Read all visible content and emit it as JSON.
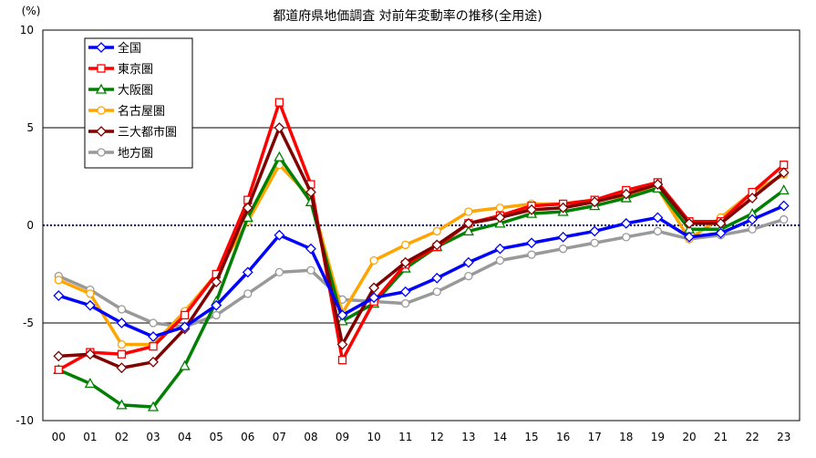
{
  "chart_data": {
    "type": "line",
    "title": "都道府県地価調査 対前年変動率の推移(全用途)",
    "ylabel": "(%)",
    "xlabel": "",
    "ylim": [
      -10,
      10
    ],
    "yticks": [
      10,
      5,
      0,
      -5,
      -10
    ],
    "grid": true,
    "legend_position": "top-left",
    "categories": [
      "00",
      "01",
      "02",
      "03",
      "04",
      "05",
      "06",
      "07",
      "08",
      "09",
      "10",
      "11",
      "12",
      "13",
      "14",
      "15",
      "16",
      "17",
      "18",
      "19",
      "20",
      "21",
      "22",
      "23"
    ],
    "series": [
      {
        "name": "全国",
        "color": "#0000ff",
        "marker": "diamond",
        "values": [
          -3.6,
          -4.1,
          -5.0,
          -5.7,
          -5.2,
          -4.1,
          -2.4,
          -0.5,
          -1.2,
          -4.6,
          -3.7,
          -3.4,
          -2.7,
          -1.9,
          -1.2,
          -0.9,
          -0.6,
          -0.3,
          0.1,
          0.4,
          -0.6,
          -0.4,
          0.3,
          1.0
        ]
      },
      {
        "name": "東京圏",
        "color": "#ff0000",
        "marker": "square",
        "values": [
          -7.4,
          -6.5,
          -6.6,
          -6.2,
          -4.6,
          -2.5,
          1.3,
          6.3,
          2.1,
          -6.9,
          -3.9,
          -2.0,
          -1.1,
          0.1,
          0.5,
          1.0,
          1.1,
          1.3,
          1.8,
          2.2,
          0.2,
          0.2,
          1.7,
          3.1
        ]
      },
      {
        "name": "大阪圏",
        "color": "#008000",
        "marker": "triangle",
        "values": [
          -7.4,
          -8.1,
          -9.2,
          -9.3,
          -7.2,
          -3.9,
          0.4,
          3.5,
          1.2,
          -4.9,
          -4.0,
          -2.2,
          -1.1,
          -0.3,
          0.1,
          0.6,
          0.7,
          1.0,
          1.4,
          1.9,
          -0.2,
          -0.2,
          0.6,
          1.8
        ]
      },
      {
        "name": "名古屋圏",
        "color": "#ffa500",
        "marker": "circle",
        "values": [
          -2.8,
          -3.5,
          -6.1,
          -6.1,
          -4.4,
          -2.5,
          0.2,
          3.1,
          1.4,
          -4.5,
          -1.8,
          -1.0,
          -0.3,
          0.7,
          0.9,
          1.1,
          1.1,
          1.3,
          1.5,
          1.9,
          -0.7,
          0.4,
          1.7,
          2.6
        ]
      },
      {
        "name": "三大都市圏",
        "color": "#800000",
        "marker": "diamond",
        "values": [
          -6.7,
          -6.6,
          -7.3,
          -7.0,
          -5.3,
          -2.9,
          0.9,
          5.0,
          1.7,
          -6.1,
          -3.2,
          -1.9,
          -1.0,
          0.1,
          0.4,
          0.8,
          0.9,
          1.2,
          1.6,
          2.1,
          0.1,
          0.1,
          1.4,
          2.7
        ]
      },
      {
        "name": "地方圏",
        "color": "#999999",
        "marker": "circle",
        "values": [
          -2.6,
          -3.3,
          -4.3,
          -5.0,
          -5.2,
          -4.6,
          -3.5,
          -2.4,
          -2.3,
          -3.8,
          -3.9,
          -4.0,
          -3.4,
          -2.6,
          -1.8,
          -1.5,
          -1.2,
          -0.9,
          -0.6,
          -0.3,
          -0.7,
          -0.5,
          -0.2,
          0.3
        ]
      }
    ]
  }
}
